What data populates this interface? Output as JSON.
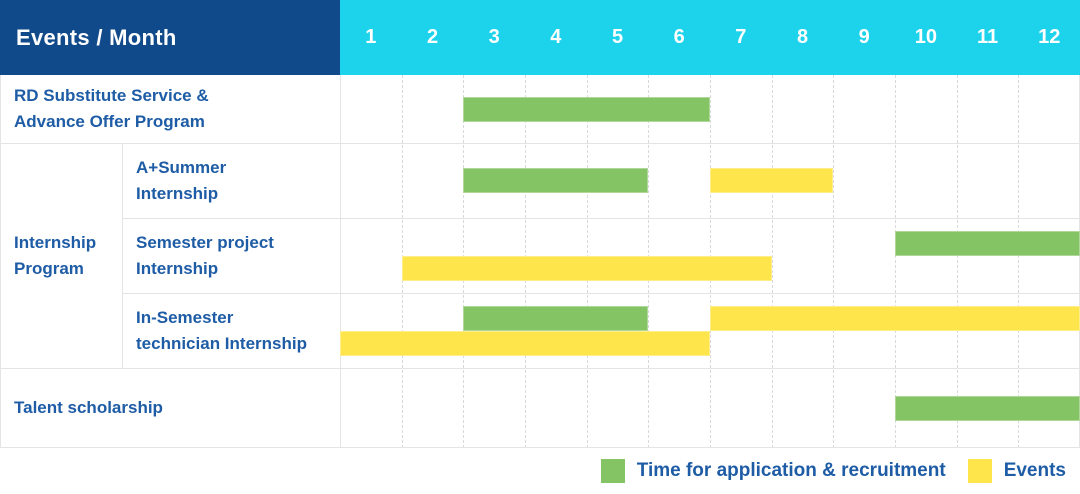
{
  "colors": {
    "navy": "#114a8a",
    "cyan": "#1dd3eb",
    "label_blue": "#1e5ca6",
    "recruitment_green": "#85c464",
    "events_yellow": "#fde54b",
    "grid_gray": "#e4e4e4"
  },
  "chart_data": {
    "type": "bar",
    "subtype": "gantt-timeline",
    "title": "Events / Month",
    "x": {
      "unit": "month",
      "range": [
        1,
        12
      ],
      "ticks": [
        "1",
        "2",
        "3",
        "4",
        "5",
        "6",
        "7",
        "8",
        "9",
        "10",
        "11",
        "12"
      ]
    },
    "legend": [
      {
        "name": "Time for application & recruitment",
        "color": "#85c464"
      },
      {
        "name": "Events",
        "color": "#fde54b"
      }
    ],
    "groups": [
      {
        "label_lines": [
          "Internship",
          "Program"
        ],
        "row_start": 1,
        "row_end": 3
      }
    ],
    "rows": [
      {
        "label_lines": [
          "RD Substitute Service &",
          "Advance Offer Program"
        ],
        "indent": false,
        "bars": [
          {
            "series": "Time for application & recruitment",
            "start_month": 3,
            "end_month": 6,
            "lane": "middle"
          }
        ]
      },
      {
        "label_lines": [
          "A+Summer",
          "Internship"
        ],
        "indent": true,
        "bars": [
          {
            "series": "Time for application & recruitment",
            "start_month": 3,
            "end_month": 5,
            "lane": "middle"
          },
          {
            "series": "Events",
            "start_month": 7,
            "end_month": 8,
            "lane": "middle"
          }
        ]
      },
      {
        "label_lines": [
          "Semester project",
          "Internship"
        ],
        "indent": true,
        "bars": [
          {
            "series": "Time for application & recruitment",
            "start_month": 10,
            "end_month": 12,
            "lane": "top"
          },
          {
            "series": "Events",
            "start_month": 2,
            "end_month": 7,
            "lane": "bottom"
          }
        ]
      },
      {
        "label_lines": [
          "In-Semester",
          "technician Internship"
        ],
        "indent": true,
        "bars": [
          {
            "series": "Time for application & recruitment",
            "start_month": 3,
            "end_month": 5,
            "lane": "top"
          },
          {
            "series": "Events",
            "start_month": 7,
            "end_month": 12,
            "lane": "top"
          },
          {
            "series": "Events",
            "start_month": 1,
            "end_month": 6,
            "lane": "bottom"
          }
        ]
      },
      {
        "label_lines": [
          "Talent scholarship"
        ],
        "indent": false,
        "bars": [
          {
            "series": "Time for application & recruitment",
            "start_month": 10,
            "end_month": 12,
            "lane": "middle"
          }
        ]
      }
    ]
  }
}
